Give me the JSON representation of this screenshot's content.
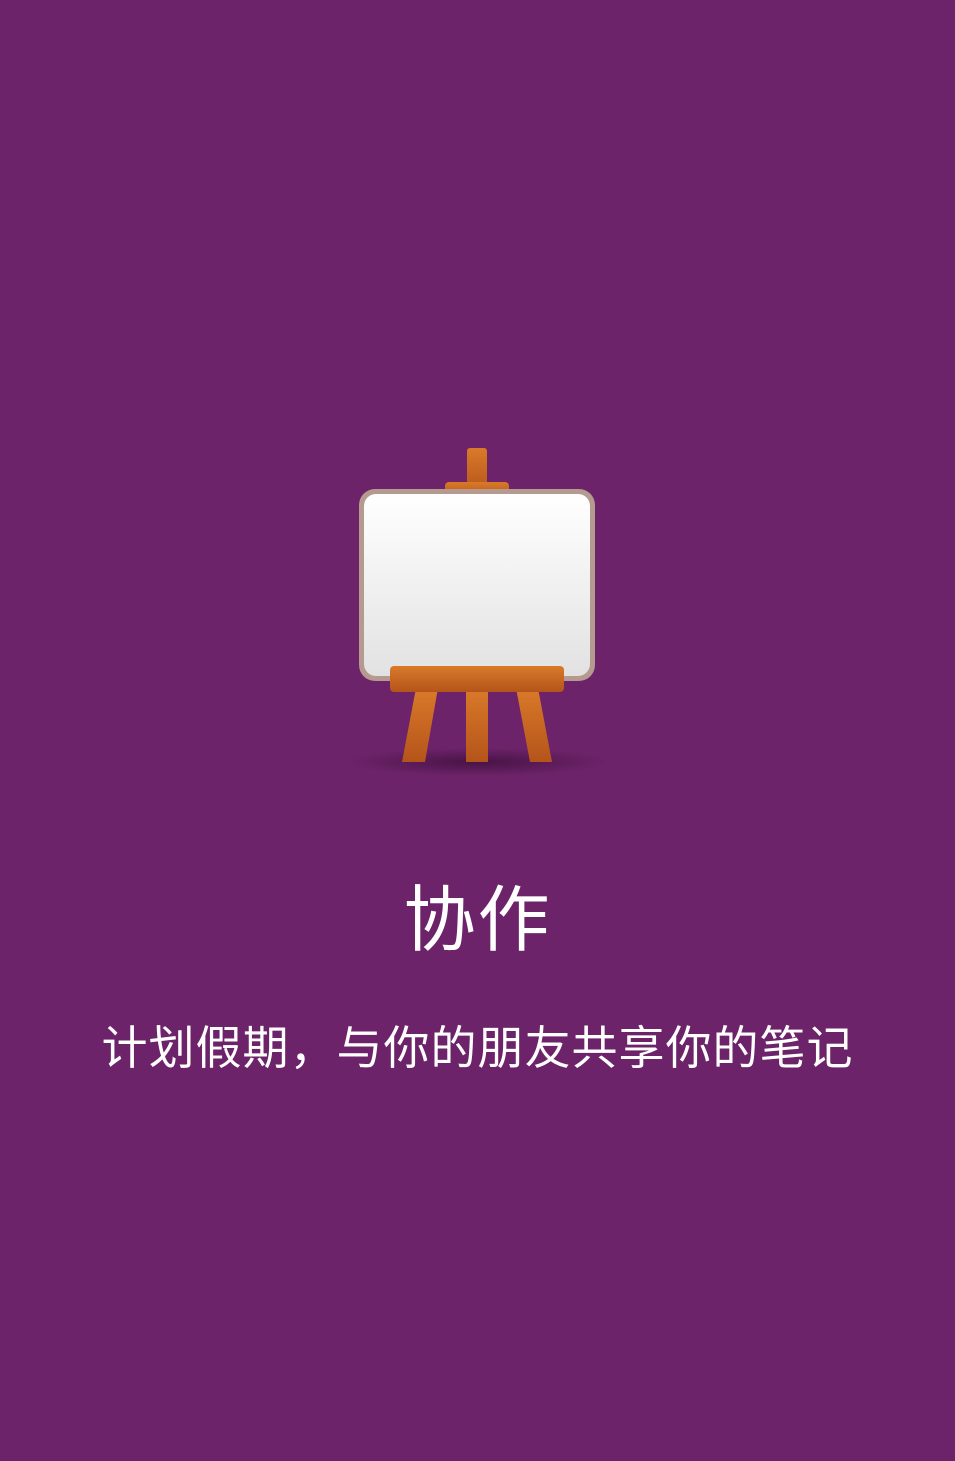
{
  "onboarding": {
    "title": "协作",
    "subtitle": "计划假期，与你的朋友共享你的笔记",
    "icon": "easel-whiteboard-icon"
  },
  "colors": {
    "background": "#6c2369",
    "text": "#ffffff",
    "wood": "#c8651e",
    "board": "#f4f4f4"
  }
}
